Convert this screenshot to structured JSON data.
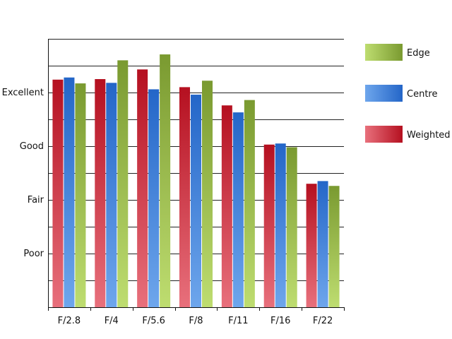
{
  "chart_data": {
    "type": "bar",
    "categories": [
      "F/2.8",
      "F/4",
      "F/5.6",
      "F/8",
      "F/11",
      "F/16",
      "F/22"
    ],
    "y_tick_labels": [
      "Poor",
      "Fair",
      "Good",
      "Excellent"
    ],
    "y_tick_values": [
      1,
      2,
      3,
      4
    ],
    "ylim": [
      0,
      5
    ],
    "grid": true,
    "legend_position": "right",
    "series": [
      {
        "name": "Weighted",
        "color_light": "#e8707c",
        "color_dark": "#b51020",
        "values": [
          4.24,
          4.25,
          4.43,
          4.1,
          3.76,
          3.03,
          2.3
        ]
      },
      {
        "name": "Centre",
        "color_light": "#6ea6ec",
        "color_dark": "#2466c8",
        "values": [
          4.28,
          4.18,
          4.06,
          3.96,
          3.63,
          3.05,
          2.35
        ]
      },
      {
        "name": "Edge",
        "color_light": "#bedd70",
        "color_dark": "#7a9a30",
        "values": [
          4.17,
          4.6,
          4.71,
          4.22,
          3.86,
          2.98,
          2.26
        ]
      }
    ],
    "legend_order": [
      "Edge",
      "Centre",
      "Weighted"
    ]
  }
}
